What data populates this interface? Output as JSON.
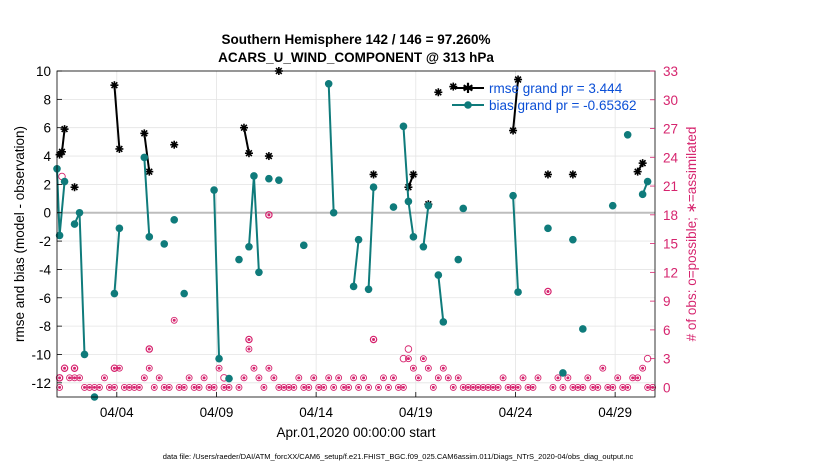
{
  "chart_data": {
    "type": "line",
    "title": "Southern Hemisphere 142 / 146 = 97.260%",
    "subtitle": "ACARS_U_WIND_COMPONENT @ 313 hPa",
    "xlabel": "Apr.01,2020 00:00:00 start",
    "ylabel": "rmse and bias (model - observation)",
    "y2label": "# of obs: o=possible; ∗=assimilated",
    "footer": "data file: /Users/raeder/DAI/ATM_forcXX/CAM6_setup/f.e21.FHIST_BGC.f09_025.CAM6assim.011/Diags_NTrS_2020-04/obs_diag_output.nc",
    "xlim": [
      0.0,
      30.0
    ],
    "ylim": [
      -13,
      10
    ],
    "y2lim": [
      -1,
      33
    ],
    "grid": true,
    "x_tick_positions": [
      3,
      8,
      13,
      18,
      23,
      28
    ],
    "x_tick_labels": [
      "04/04",
      "04/09",
      "04/14",
      "04/19",
      "04/24",
      "04/29"
    ],
    "y_ticks": [
      -12,
      -10,
      -8,
      -6,
      -4,
      -2,
      0,
      2,
      4,
      6,
      8,
      10
    ],
    "y2_ticks": [
      0,
      3,
      6,
      9,
      12,
      15,
      18,
      21,
      24,
      27,
      30,
      33
    ],
    "colors": {
      "rmse": "#000000",
      "bias": "#0f7b7b",
      "obs": "#d6246e",
      "legend_text": "#0b4fd6",
      "zero_line": "#bdbdbd",
      "grid": "#e4e4e4"
    },
    "legend_position": "top-right",
    "series": [
      {
        "name": "rmse grand pr = 3.444",
        "marker": "asterisk",
        "segments": [
          [
            [
              0.13,
              4.1
            ],
            [
              0.25,
              4.3
            ],
            [
              0.38,
              5.9
            ]
          ],
          [
            [
              0.88,
              1.8
            ]
          ],
          [
            [
              2.88,
              9.0
            ],
            [
              3.13,
              4.5
            ]
          ],
          [
            [
              4.38,
              5.6
            ],
            [
              4.63,
              2.9
            ]
          ],
          [
            [
              5.88,
              4.8
            ]
          ],
          [
            [
              9.38,
              6.0
            ],
            [
              9.63,
              4.2
            ]
          ],
          [
            [
              10.63,
              4.0
            ]
          ],
          [
            [
              11.13,
              10.0
            ]
          ],
          [
            [
              15.88,
              2.7
            ]
          ],
          [
            [
              17.63,
              1.8
            ],
            [
              17.88,
              2.7
            ]
          ],
          [
            [
              18.63,
              0.6
            ]
          ],
          [
            [
              19.13,
              8.5
            ]
          ],
          [
            [
              19.88,
              8.9
            ]
          ],
          [
            [
              22.88,
              5.8
            ],
            [
              23.13,
              9.4
            ]
          ],
          [
            [
              24.63,
              2.7
            ]
          ],
          [
            [
              25.88,
              2.7
            ]
          ],
          [
            [
              29.13,
              2.9
            ],
            [
              29.38,
              3.5
            ]
          ]
        ]
      },
      {
        "name": "bias grand pr = -0.65362",
        "marker": "circle",
        "segments": [
          [
            [
              0.0,
              3.1
            ],
            [
              0.13,
              -1.6
            ],
            [
              0.38,
              2.2
            ]
          ],
          [
            [
              0.88,
              -0.8
            ],
            [
              1.13,
              0.0
            ],
            [
              1.38,
              -10.0
            ]
          ],
          [
            [
              1.88,
              -13.0
            ]
          ],
          [
            [
              2.88,
              -5.7
            ],
            [
              3.13,
              -1.1
            ]
          ],
          [
            [
              4.38,
              3.9
            ],
            [
              4.63,
              -1.7
            ]
          ],
          [
            [
              5.38,
              -2.2
            ]
          ],
          [
            [
              5.88,
              -0.5
            ]
          ],
          [
            [
              6.38,
              -5.7
            ]
          ],
          [
            [
              7.88,
              1.6
            ],
            [
              8.13,
              -10.3
            ]
          ],
          [
            [
              8.63,
              -11.7
            ]
          ],
          [
            [
              9.13,
              -3.3
            ]
          ],
          [
            [
              9.63,
              -2.4
            ],
            [
              9.88,
              2.6
            ],
            [
              10.13,
              -4.2
            ]
          ],
          [
            [
              10.63,
              2.4
            ]
          ],
          [
            [
              11.13,
              2.3
            ]
          ],
          [
            [
              12.38,
              -2.3
            ]
          ],
          [
            [
              13.63,
              9.1
            ],
            [
              13.88,
              0.0
            ]
          ],
          [
            [
              14.88,
              -5.2
            ],
            [
              15.13,
              -1.9
            ]
          ],
          [
            [
              15.63,
              -5.4
            ],
            [
              15.88,
              1.8
            ]
          ],
          [
            [
              16.88,
              0.4
            ]
          ],
          [
            [
              17.38,
              6.1
            ],
            [
              17.63,
              0.8
            ],
            [
              17.88,
              -1.7
            ]
          ],
          [
            [
              18.38,
              -2.4
            ],
            [
              18.63,
              0.5
            ]
          ],
          [
            [
              19.13,
              -4.4
            ],
            [
              19.38,
              -7.7
            ]
          ],
          [
            [
              20.13,
              -3.3
            ]
          ],
          [
            [
              20.38,
              0.3
            ]
          ],
          [
            [
              22.88,
              1.2
            ],
            [
              23.13,
              -5.6
            ]
          ],
          [
            [
              24.63,
              -1.1
            ]
          ],
          [
            [
              25.38,
              -11.3
            ]
          ],
          [
            [
              25.88,
              -1.9
            ]
          ],
          [
            [
              26.38,
              -8.2
            ]
          ],
          [
            [
              27.88,
              0.5
            ]
          ],
          [
            [
              28.63,
              5.5
            ]
          ],
          [
            [
              29.38,
              1.3
            ],
            [
              29.63,
              2.2
            ]
          ]
        ]
      }
    ],
    "obs_assimilated": {
      "name": "# of obs assimilated",
      "points": [
        [
          0.13,
          0
        ],
        [
          0.13,
          1
        ],
        [
          0.38,
          2
        ],
        [
          0.63,
          1
        ],
        [
          0.88,
          2
        ],
        [
          0.88,
          1
        ],
        [
          1.13,
          1
        ],
        [
          1.38,
          0
        ],
        [
          1.63,
          0
        ],
        [
          1.88,
          0
        ],
        [
          2.13,
          0
        ],
        [
          2.38,
          1
        ],
        [
          2.63,
          0
        ],
        [
          2.88,
          0
        ],
        [
          2.88,
          2
        ],
        [
          3.13,
          2
        ],
        [
          3.38,
          0
        ],
        [
          3.63,
          0
        ],
        [
          3.88,
          0
        ],
        [
          4.13,
          0
        ],
        [
          4.38,
          1
        ],
        [
          4.63,
          4
        ],
        [
          4.63,
          2
        ],
        [
          4.88,
          0
        ],
        [
          5.13,
          1
        ],
        [
          5.38,
          0
        ],
        [
          5.63,
          0
        ],
        [
          5.88,
          7
        ],
        [
          6.13,
          0
        ],
        [
          6.38,
          0
        ],
        [
          6.63,
          1
        ],
        [
          6.88,
          0
        ],
        [
          7.13,
          0
        ],
        [
          7.38,
          1
        ],
        [
          7.63,
          0
        ],
        [
          7.88,
          0
        ],
        [
          8.13,
          2
        ],
        [
          8.38,
          0
        ],
        [
          8.63,
          0
        ],
        [
          9.13,
          0
        ],
        [
          9.38,
          1
        ],
        [
          9.63,
          5
        ],
        [
          9.63,
          4
        ],
        [
          9.88,
          2
        ],
        [
          10.13,
          1
        ],
        [
          10.38,
          0
        ],
        [
          10.63,
          18
        ],
        [
          10.63,
          2
        ],
        [
          10.88,
          1
        ],
        [
          11.13,
          0
        ],
        [
          11.38,
          0
        ],
        [
          11.63,
          0
        ],
        [
          11.88,
          0
        ],
        [
          12.13,
          1
        ],
        [
          12.38,
          0
        ],
        [
          12.63,
          0
        ],
        [
          12.88,
          1
        ],
        [
          13.13,
          0
        ],
        [
          13.38,
          0
        ],
        [
          13.63,
          1
        ],
        [
          13.88,
          0
        ],
        [
          14.13,
          1
        ],
        [
          14.38,
          0
        ],
        [
          14.63,
          0
        ],
        [
          14.88,
          1
        ],
        [
          15.13,
          0
        ],
        [
          15.38,
          1
        ],
        [
          15.63,
          0
        ],
        [
          15.88,
          5
        ],
        [
          16.13,
          0
        ],
        [
          16.38,
          1
        ],
        [
          16.63,
          0
        ],
        [
          16.88,
          1
        ],
        [
          17.13,
          0
        ],
        [
          17.38,
          0
        ],
        [
          17.63,
          3
        ],
        [
          17.88,
          2
        ],
        [
          18.13,
          1
        ],
        [
          18.38,
          3
        ],
        [
          18.63,
          2
        ],
        [
          18.88,
          0
        ],
        [
          19.13,
          1
        ],
        [
          19.38,
          2
        ],
        [
          19.63,
          1
        ],
        [
          19.88,
          0
        ],
        [
          20.13,
          1
        ],
        [
          20.38,
          0
        ],
        [
          20.63,
          0
        ],
        [
          20.88,
          0
        ],
        [
          21.13,
          0
        ],
        [
          21.38,
          0
        ],
        [
          21.63,
          0
        ],
        [
          21.88,
          0
        ],
        [
          22.13,
          0
        ],
        [
          22.38,
          1
        ],
        [
          22.63,
          0
        ],
        [
          22.88,
          0
        ],
        [
          23.13,
          0
        ],
        [
          23.38,
          1
        ],
        [
          23.63,
          0
        ],
        [
          23.88,
          0
        ],
        [
          24.13,
          1
        ],
        [
          24.63,
          10
        ],
        [
          24.88,
          0
        ],
        [
          25.13,
          1
        ],
        [
          25.38,
          0
        ],
        [
          25.63,
          1
        ],
        [
          25.88,
          0
        ],
        [
          26.13,
          0
        ],
        [
          26.38,
          0
        ],
        [
          26.63,
          1
        ],
        [
          26.88,
          0
        ],
        [
          27.13,
          0
        ],
        [
          27.38,
          2
        ],
        [
          27.63,
          0
        ],
        [
          27.88,
          0
        ],
        [
          28.13,
          1
        ],
        [
          28.38,
          0
        ],
        [
          28.63,
          0
        ],
        [
          28.88,
          1
        ],
        [
          29.13,
          1
        ],
        [
          29.38,
          2
        ],
        [
          29.63,
          0
        ],
        [
          29.88,
          0
        ]
      ]
    },
    "obs_possible": {
      "name": "# of obs possible",
      "points": [
        [
          0.13,
          1
        ],
        [
          0.25,
          22
        ],
        [
          0.38,
          2
        ],
        [
          0.88,
          2
        ],
        [
          2.88,
          2
        ],
        [
          4.63,
          4
        ],
        [
          8.38,
          1
        ],
        [
          9.63,
          5
        ],
        [
          10.63,
          18
        ],
        [
          15.88,
          5
        ],
        [
          17.38,
          3
        ],
        [
          17.63,
          4
        ],
        [
          24.63,
          10
        ],
        [
          29.63,
          3
        ]
      ]
    }
  }
}
